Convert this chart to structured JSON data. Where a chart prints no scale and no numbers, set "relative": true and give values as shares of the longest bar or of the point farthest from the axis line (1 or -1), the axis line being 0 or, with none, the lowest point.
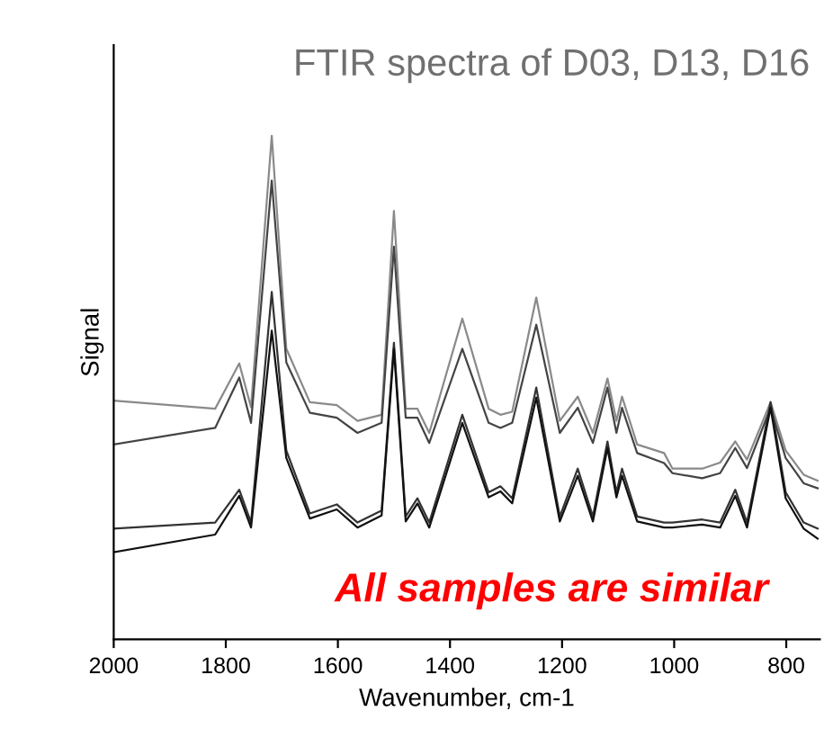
{
  "chart_data": {
    "type": "line",
    "title": "FTIR spectra of D03, D13, D16",
    "xlabel": "Wavenumber, cm-1",
    "ylabel": "Signal",
    "relative": true,
    "xlim": [
      2000,
      740
    ],
    "xticks": [
      2000,
      1800,
      1600,
      1400,
      1200,
      1000,
      800
    ],
    "grid": false,
    "legend": false,
    "marker": "none",
    "line_style": "solid",
    "x": [
      2000,
      1819,
      1776,
      1755,
      1718,
      1692,
      1650,
      1602,
      1565,
      1522,
      1500,
      1479,
      1458,
      1437,
      1378,
      1331,
      1310,
      1289,
      1246,
      1204,
      1172,
      1145,
      1119,
      1103,
      1093,
      1066,
      1018,
      1003,
      950,
      918,
      891,
      870,
      828,
      801,
      769,
      744
    ],
    "series": [
      {
        "color": "#8a8a8a",
        "values": [
          0.474,
          0.458,
          0.548,
          0.461,
          1.0,
          0.577,
          0.471,
          0.465,
          0.434,
          0.446,
          0.851,
          0.458,
          0.458,
          0.41,
          0.637,
          0.458,
          0.446,
          0.452,
          0.679,
          0.434,
          0.482,
          0.41,
          0.518,
          0.434,
          0.482,
          0.387,
          0.37,
          0.339,
          0.339,
          0.351,
          0.393,
          0.357,
          0.471,
          0.375,
          0.327,
          0.315
        ]
      },
      {
        "color": "#444444",
        "values": [
          0.387,
          0.42,
          0.52,
          0.43,
          0.911,
          0.55,
          0.45,
          0.44,
          0.41,
          0.43,
          0.78,
          0.44,
          0.44,
          0.39,
          0.577,
          0.43,
          0.42,
          0.43,
          0.625,
          0.41,
          0.46,
          0.39,
          0.5,
          0.41,
          0.46,
          0.37,
          0.35,
          0.33,
          0.32,
          0.33,
          0.38,
          0.34,
          0.46,
          0.36,
          0.31,
          0.3
        ]
      },
      {
        "color": "#333333",
        "values": [
          0.22,
          0.232,
          0.297,
          0.232,
          0.69,
          0.375,
          0.25,
          0.268,
          0.232,
          0.256,
          0.589,
          0.244,
          0.28,
          0.232,
          0.446,
          0.292,
          0.304,
          0.28,
          0.5,
          0.244,
          0.339,
          0.244,
          0.393,
          0.292,
          0.339,
          0.244,
          0.232,
          0.232,
          0.238,
          0.232,
          0.297,
          0.232,
          0.471,
          0.292,
          0.232,
          0.22
        ]
      },
      {
        "color": "#111111",
        "values": [
          0.173,
          0.208,
          0.285,
          0.222,
          0.613,
          0.36,
          0.24,
          0.258,
          0.222,
          0.246,
          0.577,
          0.234,
          0.27,
          0.222,
          0.43,
          0.282,
          0.294,
          0.27,
          0.48,
          0.234,
          0.325,
          0.234,
          0.38,
          0.282,
          0.325,
          0.234,
          0.222,
          0.222,
          0.228,
          0.222,
          0.285,
          0.222,
          0.46,
          0.28,
          0.22,
          0.2
        ]
      }
    ],
    "annotations": [
      "All samples are similar"
    ]
  }
}
